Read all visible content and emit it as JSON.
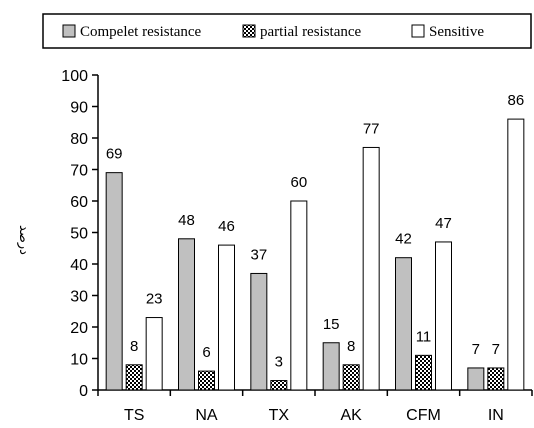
{
  "chart_data": {
    "type": "bar",
    "categories": [
      "TS",
      "NA",
      "TX",
      "AK",
      "CFM",
      "IN"
    ],
    "series": [
      {
        "name": "Compelet resistance",
        "values": [
          69,
          48,
          37,
          15,
          42,
          7
        ],
        "color": "#c0c0c0",
        "pattern": "solid"
      },
      {
        "name": "partial resistance",
        "values": [
          8,
          6,
          3,
          8,
          11,
          7
        ],
        "color": "#000000",
        "pattern": "checker"
      },
      {
        "name": "Sensitive",
        "values": [
          23,
          46,
          60,
          77,
          47,
          86
        ],
        "color": "#ffffff",
        "pattern": "solid"
      }
    ],
    "title": "",
    "xlabel": "",
    "ylabel": "درصد",
    "ylim": [
      0,
      100
    ],
    "yticks": [
      0,
      10,
      20,
      30,
      40,
      50,
      60,
      70,
      80,
      90,
      100
    ],
    "grid": false,
    "legend_position": "top"
  }
}
